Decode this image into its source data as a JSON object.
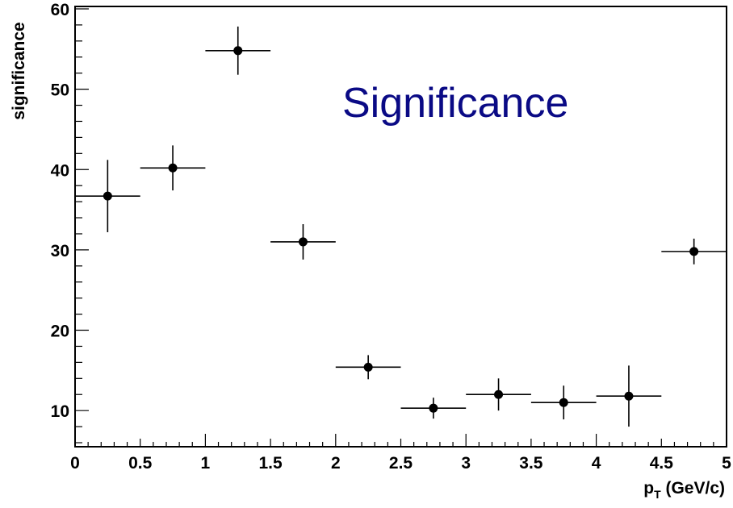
{
  "chart_data": {
    "type": "scatter",
    "title": "",
    "annotation": "Significance",
    "annotation_color": "#0a0a85",
    "ylabel": "significance",
    "xlabel": {
      "main": "p",
      "subscript": "T",
      "rest": " (GeV/c)"
    },
    "xlim": [
      0,
      5
    ],
    "ylim": [
      5.5,
      60.3
    ],
    "x_ticks": [
      0,
      0.5,
      1,
      1.5,
      2,
      2.5,
      3,
      3.5,
      4,
      4.5,
      5
    ],
    "x_tick_labels": [
      "0",
      "0.5",
      "1",
      "1.5",
      "2",
      "2.5",
      "3",
      "3.5",
      "4",
      "4.5",
      "5"
    ],
    "y_ticks": [
      10,
      20,
      30,
      40,
      50,
      60
    ],
    "y_tick_labels": [
      "10",
      "20",
      "30",
      "40",
      "50",
      "60"
    ],
    "grid": false,
    "marker_color": "#000000",
    "points": [
      {
        "x": 0.25,
        "y": 36.7,
        "xerr": 0.25,
        "yerr": 4.5
      },
      {
        "x": 0.75,
        "y": 40.2,
        "xerr": 0.25,
        "yerr": 2.8
      },
      {
        "x": 1.25,
        "y": 54.8,
        "xerr": 0.25,
        "yerr": 3.0
      },
      {
        "x": 1.75,
        "y": 31.0,
        "xerr": 0.25,
        "yerr": 2.2
      },
      {
        "x": 2.25,
        "y": 15.4,
        "xerr": 0.25,
        "yerr": 1.5
      },
      {
        "x": 2.75,
        "y": 10.3,
        "xerr": 0.25,
        "yerr": 1.3
      },
      {
        "x": 3.25,
        "y": 12.0,
        "xerr": 0.25,
        "yerr": 2.0
      },
      {
        "x": 3.75,
        "y": 11.0,
        "xerr": 0.25,
        "yerr": 2.1
      },
      {
        "x": 4.25,
        "y": 11.8,
        "xerr": 0.25,
        "yerr": 3.8
      },
      {
        "x": 4.75,
        "y": 29.8,
        "xerr": 0.25,
        "yerr": 1.6
      }
    ]
  }
}
